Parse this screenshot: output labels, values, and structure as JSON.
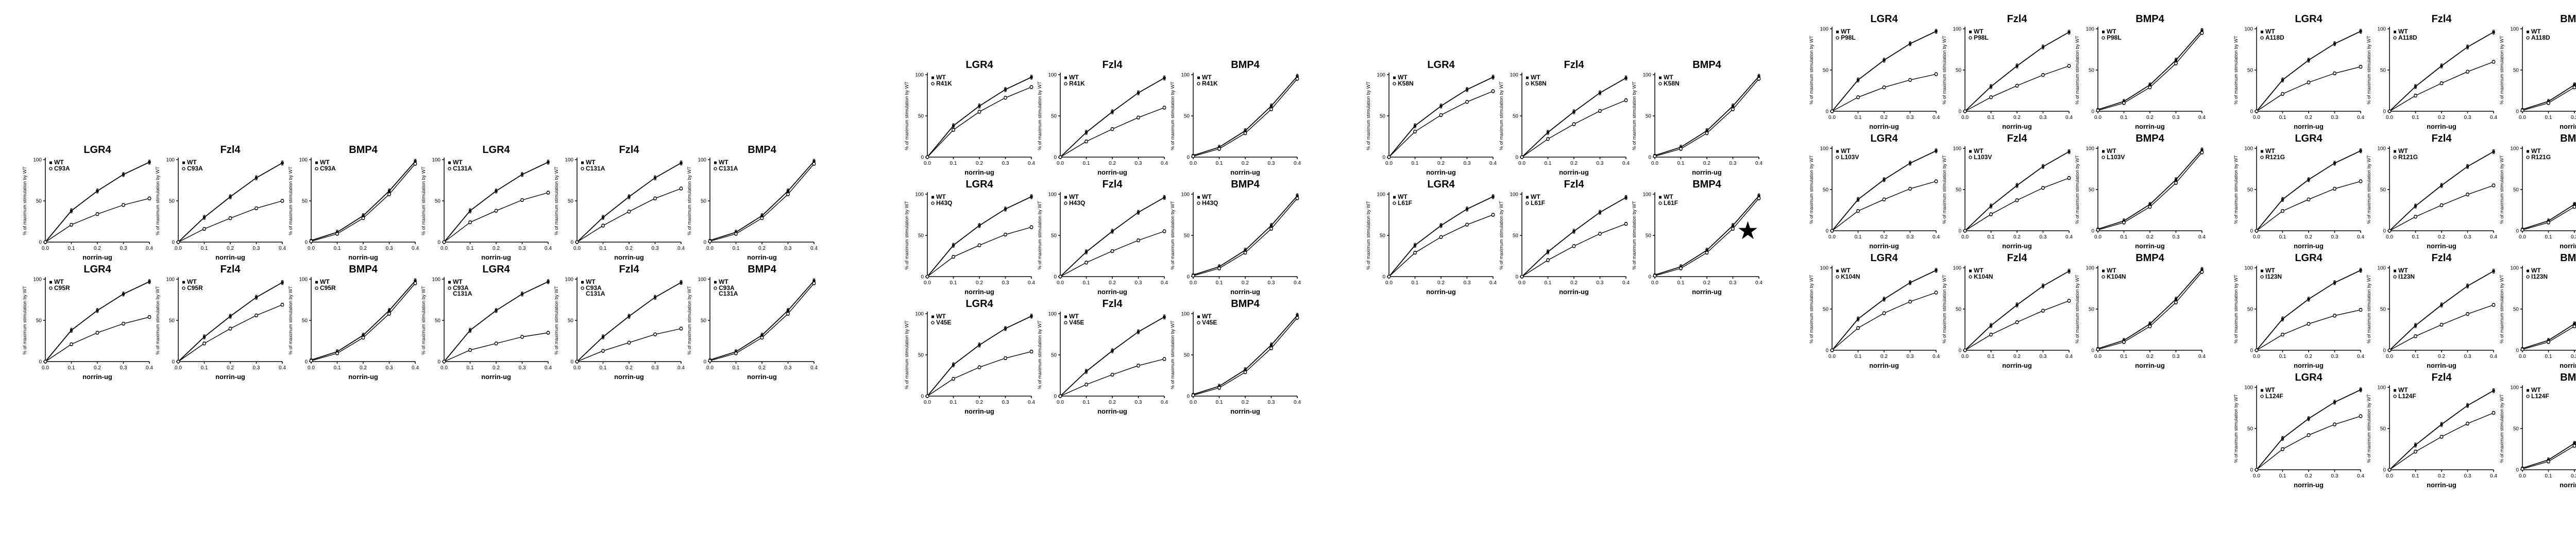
{
  "figure_title": "",
  "chart_data": {
    "type": "line",
    "title": "",
    "xlabel": "norrin-ug",
    "ylabel": "% of maximum stimulation by WT",
    "legend_wt": "WT",
    "star_glyph": "★",
    "line_color": "#000000",
    "xlim": [
      0,
      0.4
    ],
    "ylim": [
      0,
      100
    ],
    "x": [
      0,
      0.1,
      0.2,
      0.3,
      0.4
    ],
    "xticks": [
      "0.0",
      "0.1",
      "0.2",
      "0.3",
      "0.4"
    ],
    "yticks": [
      0,
      50,
      100
    ],
    "receptors": [
      "LGR4",
      "Fzl4",
      "BMP4"
    ],
    "legend_position": "top-left-inside",
    "grid": false,
    "wt": {
      "LGR4": [
        0,
        38,
        62,
        82,
        97
      ],
      "Fzl4": [
        0,
        30,
        55,
        78,
        96
      ],
      "BMP4": [
        2,
        12,
        32,
        62,
        98
      ]
    },
    "mutants": {
      "C93A": {
        "star": false,
        "LGR4": [
          0,
          21,
          34,
          45,
          53
        ],
        "Fzl4": [
          0,
          16,
          29,
          41,
          50
        ],
        "BMP4": [
          1,
          10,
          29,
          58,
          95
        ]
      },
      "C131A": {
        "star": false,
        "LGR4": [
          0,
          24,
          38,
          51,
          60
        ],
        "Fzl4": [
          0,
          20,
          37,
          53,
          65
        ],
        "BMP4": [
          1,
          10,
          29,
          58,
          95
        ]
      },
      "C95R": {
        "star": false,
        "LGR4": [
          0,
          21,
          35,
          46,
          54
        ],
        "Fzl4": [
          0,
          22,
          40,
          56,
          69
        ],
        "BMP4": [
          1,
          10,
          29,
          58,
          95
        ]
      },
      "C93A C131A": {
        "star": false,
        "LGR4": [
          0,
          14,
          22,
          30,
          35
        ],
        "Fzl4": [
          0,
          13,
          23,
          33,
          40
        ],
        "BMP4": [
          1,
          10,
          29,
          58,
          95
        ]
      },
      "R41K": {
        "star": false,
        "LGR4": [
          0,
          33,
          55,
          72,
          85
        ],
        "Fzl4": [
          0,
          19,
          34,
          48,
          60
        ],
        "BMP4": [
          1,
          10,
          29,
          58,
          95
        ]
      },
      "H43Q": {
        "star": false,
        "LGR4": [
          0,
          24,
          38,
          51,
          60
        ],
        "Fzl4": [
          0,
          17,
          31,
          44,
          55
        ],
        "BMP4": [
          1,
          10,
          29,
          58,
          95
        ]
      },
      "V45E": {
        "star": false,
        "LGR4": [
          0,
          21,
          35,
          46,
          54
        ],
        "Fzl4": [
          0,
          14,
          26,
          37,
          45
        ],
        "BMP4": [
          1,
          10,
          29,
          58,
          95
        ]
      },
      "K58N": {
        "star": false,
        "LGR4": [
          0,
          31,
          51,
          67,
          80
        ],
        "Fzl4": [
          0,
          22,
          40,
          56,
          69
        ],
        "BMP4": [
          1,
          10,
          29,
          58,
          95
        ]
      },
      "L61F": {
        "star": true,
        "LGR4": [
          0,
          29,
          48,
          63,
          75
        ],
        "Fzl4": [
          0,
          20,
          37,
          52,
          64
        ],
        "BMP4": [
          1,
          10,
          29,
          58,
          95
        ]
      },
      "P98L": {
        "star": false,
        "LGR4": [
          0,
          17,
          29,
          38,
          45
        ],
        "Fzl4": [
          0,
          17,
          31,
          44,
          55
        ],
        "BMP4": [
          1,
          10,
          29,
          58,
          95
        ]
      },
      "L103V": {
        "star": false,
        "LGR4": [
          0,
          24,
          38,
          51,
          60
        ],
        "Fzl4": [
          0,
          20,
          37,
          52,
          64
        ],
        "BMP4": [
          1,
          10,
          29,
          58,
          95
        ]
      },
      "K104N": {
        "star": false,
        "LGR4": [
          0,
          27,
          45,
          59,
          70
        ],
        "Fzl4": [
          0,
          19,
          34,
          48,
          60
        ],
        "BMP4": [
          1,
          10,
          29,
          58,
          95
        ]
      },
      "A118D": {
        "star": false,
        "LGR4": [
          0,
          21,
          35,
          46,
          54
        ],
        "Fzl4": [
          0,
          19,
          34,
          48,
          60
        ],
        "BMP4": [
          1,
          10,
          29,
          58,
          95
        ]
      },
      "R121G": {
        "star": true,
        "LGR4": [
          0,
          24,
          38,
          51,
          60
        ],
        "Fzl4": [
          0,
          17,
          31,
          44,
          55
        ],
        "BMP4": [
          1,
          10,
          29,
          58,
          95
        ]
      },
      "I123N": {
        "star": false,
        "LGR4": [
          0,
          19,
          32,
          42,
          49
        ],
        "Fzl4": [
          0,
          17,
          31,
          44,
          55
        ],
        "BMP4": [
          1,
          10,
          29,
          58,
          95
        ]
      },
      "L124F": {
        "star": false,
        "LGR4": [
          0,
          25,
          42,
          55,
          65
        ],
        "Fzl4": [
          0,
          22,
          40,
          56,
          69
        ],
        "BMP4": [
          1,
          10,
          29,
          58,
          95
        ]
      }
    },
    "groups": [
      {
        "id": "g1",
        "rows": [
          [
            "C93A",
            "C131A"
          ],
          [
            "C95R",
            "C93A C131A"
          ]
        ]
      },
      {
        "id": "g2",
        "rows": [
          [
            "R41K"
          ],
          [
            "H43Q"
          ],
          [
            "V45E"
          ]
        ]
      },
      {
        "id": "g3",
        "rows": [
          [
            "K58N"
          ],
          [
            "L61F"
          ]
        ]
      },
      {
        "id": "g4",
        "rows": [
          [
            "P98L"
          ],
          [
            "L103V"
          ],
          [
            "K104N"
          ]
        ]
      },
      {
        "id": "g5",
        "rows": [
          [
            "A118D"
          ],
          [
            "R121G"
          ],
          [
            "I123N"
          ],
          [
            "L124F"
          ]
        ]
      }
    ]
  }
}
